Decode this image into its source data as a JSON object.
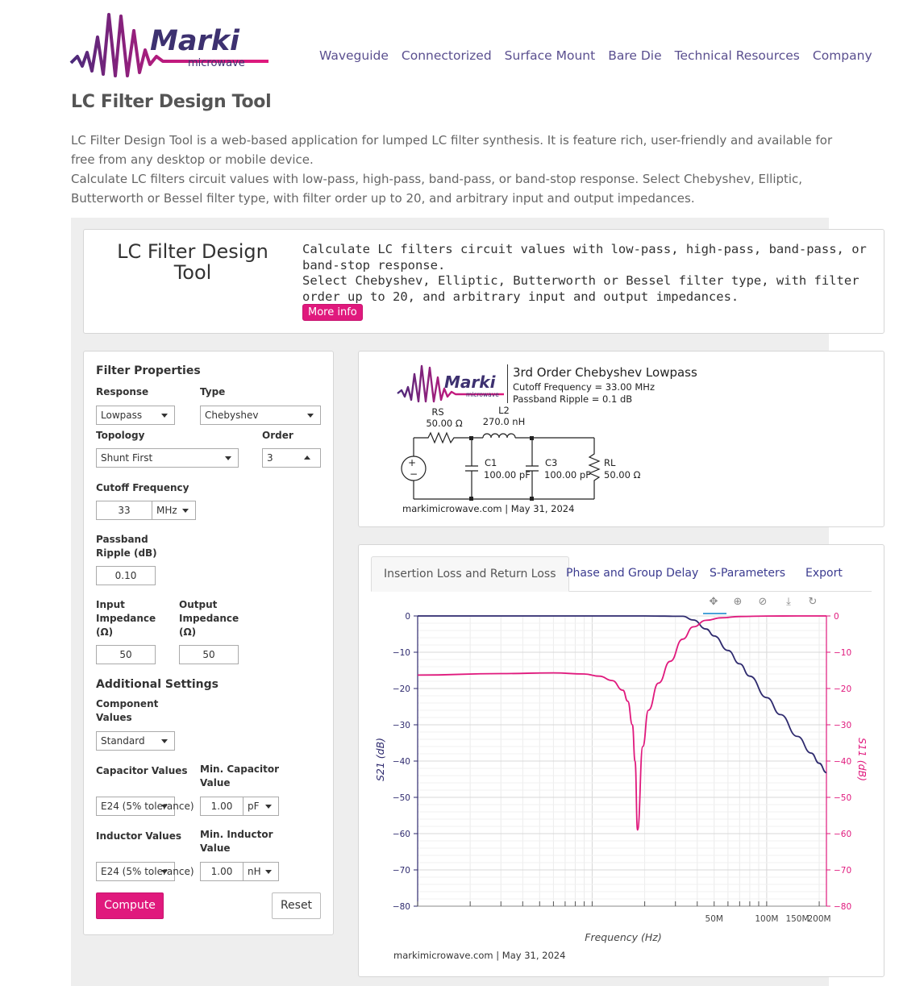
{
  "brand": {
    "name": "Marki",
    "sub": "microwave"
  },
  "nav": [
    "Waveguide",
    "Connectorized",
    "Surface Mount",
    "Bare Die",
    "Technical Resources",
    "Company"
  ],
  "page_title": "LC Filter Design Tool",
  "intro": {
    "p1": "LC Filter Design Tool is a web-based application for lumped LC filter synthesis. It is feature rich, user-friendly and available for free from any desktop or mobile device.",
    "p2": "Calculate LC filters circuit values with low-pass, high-pass, band-pass, or band-stop response. Select Chebyshev, Elliptic, Butterworth or Bessel filter type, with filter order up to 20, and arbitrary input and output impedances."
  },
  "hero": {
    "title": "LC Filter Design Tool",
    "line1": "Calculate LC filters circuit values with low-pass, high-pass, band-pass, or band-stop response.",
    "line2": "Select Chebyshev, Elliptic, Butterworth or Bessel filter type, with filter order up to 20, and arbitrary input and output impedances.",
    "more_info": "More info"
  },
  "form": {
    "heading": "Filter Properties",
    "response_label": "Response",
    "response_value": "Lowpass",
    "type_label": "Type",
    "type_value": "Chebyshev",
    "topology_label": "Topology",
    "topology_value": "Shunt First",
    "order_label": "Order",
    "order_value": "3",
    "cutoff_label": "Cutoff Frequency",
    "cutoff_value": "33",
    "cutoff_unit": "MHz",
    "ripple_label_1": "Passband",
    "ripple_label_2": "Ripple (dB)",
    "ripple_value": "0.10",
    "input_label_1": "Input",
    "input_label_2": "Impedance",
    "input_label_3": "(Ω)",
    "input_value": "50",
    "output_label_1": "Output",
    "output_label_2": "Impedance",
    "output_label_3": "(Ω)",
    "output_value": "50",
    "additional_heading": "Additional Settings",
    "component_label_1": "Component",
    "component_label_2": "Values",
    "component_value": "Standard",
    "cap_label": "Capacitor Values",
    "cap_value": "E24 (5% tolerance)",
    "min_cap_label_1": "Min. Capacitor",
    "min_cap_label_2": "Value",
    "min_cap_value": "1.00",
    "min_cap_unit": "pF",
    "ind_label": "Inductor Values",
    "ind_value": "E24 (5% tolerance)",
    "min_ind_label_1": "Min. Inductor",
    "min_ind_label_2": "Value",
    "min_ind_value": "1.00",
    "min_ind_unit": "nH",
    "compute": "Compute",
    "reset": "Reset"
  },
  "schematic": {
    "title": "3rd Order Chebyshev Lowpass",
    "cutoff": "Cutoff Frequency = 33.00 MHz",
    "ripple": "Passband Ripple = 0.1 dB",
    "rs_name": "RS",
    "rs_value": "50.00 Ω",
    "l2_name": "L2",
    "l2_value": "270.0 nH",
    "c1_name": "C1",
    "c1_value": "100.00 pF",
    "c3_name": "C3",
    "c3_value": "100.00 pF",
    "rl_name": "RL",
    "rl_value": "50.00 Ω",
    "footer": "markimicrowave.com | May 31, 2024"
  },
  "tabs": [
    "Insertion Loss and Return Loss",
    "Phase and Group Delay",
    "S-Parameters",
    "Export"
  ],
  "toolbar_icons": [
    "pan-icon",
    "zoom-icon",
    "reset-axes-icon",
    "download-icon",
    "autoscale-icon"
  ],
  "chart_footer": "markimicrowave.com | May 31, 2024",
  "colors": {
    "accent": "#e0197d",
    "s21": "#2e2a6e",
    "s11": "#e0197d",
    "nav": "#5a4f8f"
  },
  "chart_data": {
    "type": "line",
    "xlabel": "Frequency (Hz)",
    "ylabel": "S21 (dB)",
    "y2label": "S11 (dB)",
    "x_scale": "log",
    "xlim": [
      1000000,
      220000000
    ],
    "ylim": [
      -80,
      0
    ],
    "x_ticks": [
      {
        "value": 50000000,
        "label": "50M"
      },
      {
        "value": 100000000,
        "label": "100M"
      },
      {
        "value": 150000000,
        "label": "150M"
      },
      {
        "value": 200000000,
        "label": "200M"
      }
    ],
    "y_ticks": [
      0,
      -10,
      -20,
      -30,
      -40,
      -50,
      -60,
      -70,
      -80
    ],
    "grid": true,
    "series": [
      {
        "name": "S21 (dB)",
        "axis": "left",
        "x": [
          1000000,
          10000000,
          20000000,
          26000000,
          30000000,
          33000000,
          38000000,
          45000000,
          50000000,
          60000000,
          70000000,
          80000000,
          100000000,
          120000000,
          150000000,
          180000000,
          200000000,
          220000000
        ],
        "y": [
          0,
          0,
          0,
          -0.05,
          -0.08,
          -0.1,
          -1.1,
          -3.6,
          -5.5,
          -9.5,
          -13.2,
          -16.6,
          -22.5,
          -27.2,
          -33.2,
          -37.8,
          -40.6,
          -43.2
        ]
      },
      {
        "name": "S11 (dB)",
        "axis": "right",
        "x": [
          1000000,
          3000000,
          6000000,
          9000000,
          11000000,
          13000000,
          15000000,
          16000000,
          17000000,
          17600000,
          18200000,
          19500000,
          21000000,
          24000000,
          28000000,
          33000000,
          38000000,
          45000000,
          55000000,
          70000000,
          100000000,
          150000000,
          220000000
        ],
        "y": [
          -16.3,
          -15.9,
          -15.7,
          -16.0,
          -16.6,
          -17.8,
          -20.5,
          -23.5,
          -30.0,
          -40.0,
          -59.0,
          -36.0,
          -26.0,
          -18.5,
          -12.5,
          -6.4,
          -3.0,
          -1.2,
          -0.5,
          -0.15,
          -0.02,
          0,
          0
        ]
      }
    ]
  }
}
